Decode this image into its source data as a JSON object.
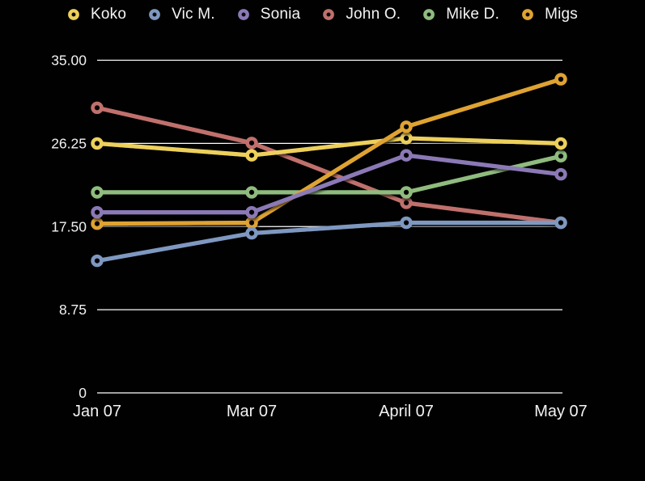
{
  "chart_data": {
    "type": "line",
    "title": "",
    "xlabel": "",
    "ylabel": "",
    "categories": [
      "Jan 07",
      "Mar 07",
      "April 07",
      "May 07"
    ],
    "series": [
      {
        "name": "Koko",
        "color": "#EDD05C",
        "values": [
          26.25,
          25.0,
          26.8,
          26.25
        ]
      },
      {
        "name": "Vic M.",
        "color": "#7E98C0",
        "values": [
          13.9,
          16.8,
          17.9,
          17.9
        ]
      },
      {
        "name": "Sonia",
        "color": "#8B79B6",
        "values": [
          19.0,
          19.0,
          25.0,
          23.0
        ]
      },
      {
        "name": "John O.",
        "color": "#C0706C",
        "values": [
          30.0,
          26.3,
          20.0,
          17.9
        ]
      },
      {
        "name": "Mike D.",
        "color": "#8FBC7E",
        "values": [
          21.1,
          21.1,
          21.1,
          24.9
        ]
      },
      {
        "name": "Migs",
        "color": "#DFA332",
        "values": [
          17.8,
          17.9,
          28.0,
          33.0
        ]
      }
    ],
    "draw_order": [
      "John O.",
      "Mike D.",
      "Koko",
      "Migs",
      "Sonia",
      "Vic M."
    ],
    "yticks": [
      {
        "value": 0,
        "label": "0"
      },
      {
        "value": 8.75,
        "label": "8.75"
      },
      {
        "value": 17.5,
        "label": "17.50"
      },
      {
        "value": 26.25,
        "label": "26.25"
      },
      {
        "value": 35,
        "label": "35.00"
      }
    ],
    "ylim": [
      0,
      35
    ],
    "grid": true,
    "legend_position": "top",
    "background_color": "#000000",
    "gridline_color": "#ffffff",
    "text_color": "#f2f2f2",
    "marker_style": "ring"
  }
}
